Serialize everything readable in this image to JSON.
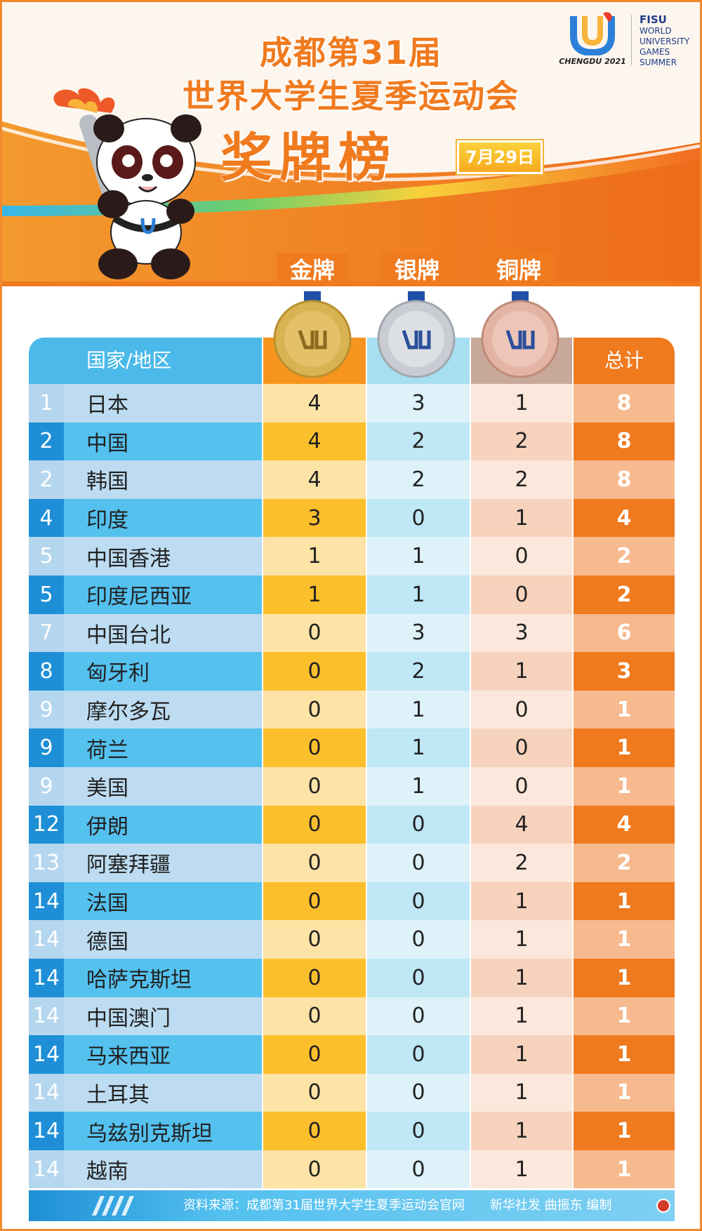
{
  "title": {
    "line1": "成都第31届",
    "line2": "世界大学生夏季运动会",
    "line3": "奖牌榜",
    "date": "7月29日"
  },
  "logo": {
    "city": "CHENGDU 2021",
    "fisu": "FISU",
    "sub_lines": [
      "WORLD",
      "UNIVERSITY",
      "GAMES",
      "SUMMER"
    ]
  },
  "medal_tabs": {
    "gold": "金牌",
    "silver": "银牌",
    "bronze": "铜牌"
  },
  "table": {
    "header_country": "国家/地区",
    "header_total": "总计",
    "rows": [
      {
        "rank": "1",
        "name": "日本",
        "gold": "4",
        "silver": "3",
        "bronze": "1",
        "total": "8"
      },
      {
        "rank": "2",
        "name": "中国",
        "gold": "4",
        "silver": "2",
        "bronze": "2",
        "total": "8"
      },
      {
        "rank": "2",
        "name": "韩国",
        "gold": "4",
        "silver": "2",
        "bronze": "2",
        "total": "8"
      },
      {
        "rank": "4",
        "name": "印度",
        "gold": "3",
        "silver": "0",
        "bronze": "1",
        "total": "4"
      },
      {
        "rank": "5",
        "name": "中国香港",
        "gold": "1",
        "silver": "1",
        "bronze": "0",
        "total": "2"
      },
      {
        "rank": "5",
        "name": "印度尼西亚",
        "gold": "1",
        "silver": "1",
        "bronze": "0",
        "total": "2"
      },
      {
        "rank": "7",
        "name": "中国台北",
        "gold": "0",
        "silver": "3",
        "bronze": "3",
        "total": "6"
      },
      {
        "rank": "8",
        "name": "匈牙利",
        "gold": "0",
        "silver": "2",
        "bronze": "1",
        "total": "3"
      },
      {
        "rank": "9",
        "name": "摩尔多瓦",
        "gold": "0",
        "silver": "1",
        "bronze": "0",
        "total": "1"
      },
      {
        "rank": "9",
        "name": "荷兰",
        "gold": "0",
        "silver": "1",
        "bronze": "0",
        "total": "1"
      },
      {
        "rank": "9",
        "name": "美国",
        "gold": "0",
        "silver": "1",
        "bronze": "0",
        "total": "1"
      },
      {
        "rank": "12",
        "name": "伊朗",
        "gold": "0",
        "silver": "0",
        "bronze": "4",
        "total": "4"
      },
      {
        "rank": "13",
        "name": "阿塞拜疆",
        "gold": "0",
        "silver": "0",
        "bronze": "2",
        "total": "2"
      },
      {
        "rank": "14",
        "name": "法国",
        "gold": "0",
        "silver": "0",
        "bronze": "1",
        "total": "1"
      },
      {
        "rank": "14",
        "name": "德国",
        "gold": "0",
        "silver": "0",
        "bronze": "1",
        "total": "1"
      },
      {
        "rank": "14",
        "name": "哈萨克斯坦",
        "gold": "0",
        "silver": "0",
        "bronze": "1",
        "total": "1"
      },
      {
        "rank": "14",
        "name": "中国澳门",
        "gold": "0",
        "silver": "0",
        "bronze": "1",
        "total": "1"
      },
      {
        "rank": "14",
        "name": "马来西亚",
        "gold": "0",
        "silver": "0",
        "bronze": "1",
        "total": "1"
      },
      {
        "rank": "14",
        "name": "土耳其",
        "gold": "0",
        "silver": "0",
        "bronze": "1",
        "total": "1"
      },
      {
        "rank": "14",
        "name": "乌兹别克斯坦",
        "gold": "0",
        "silver": "0",
        "bronze": "1",
        "total": "1"
      },
      {
        "rank": "14",
        "name": "越南",
        "gold": "0",
        "silver": "0",
        "bronze": "1",
        "total": "1"
      }
    ]
  },
  "footer": {
    "text": "资料来源：成都第31届世界大学生夏季运动会官网　　新华社发 曲振东 编制"
  },
  "colors": {
    "orange": "#f07a1e",
    "gold": "#fcbf2c",
    "blue": "#4bb9ea",
    "dark_blue": "#1e8fd6"
  },
  "icons": {
    "mascot": "panda-mascot-icon",
    "logo": "chengdu-u-logo-icon",
    "medals": [
      "gold-medal-icon",
      "silver-medal-icon",
      "bronze-medal-icon"
    ]
  }
}
